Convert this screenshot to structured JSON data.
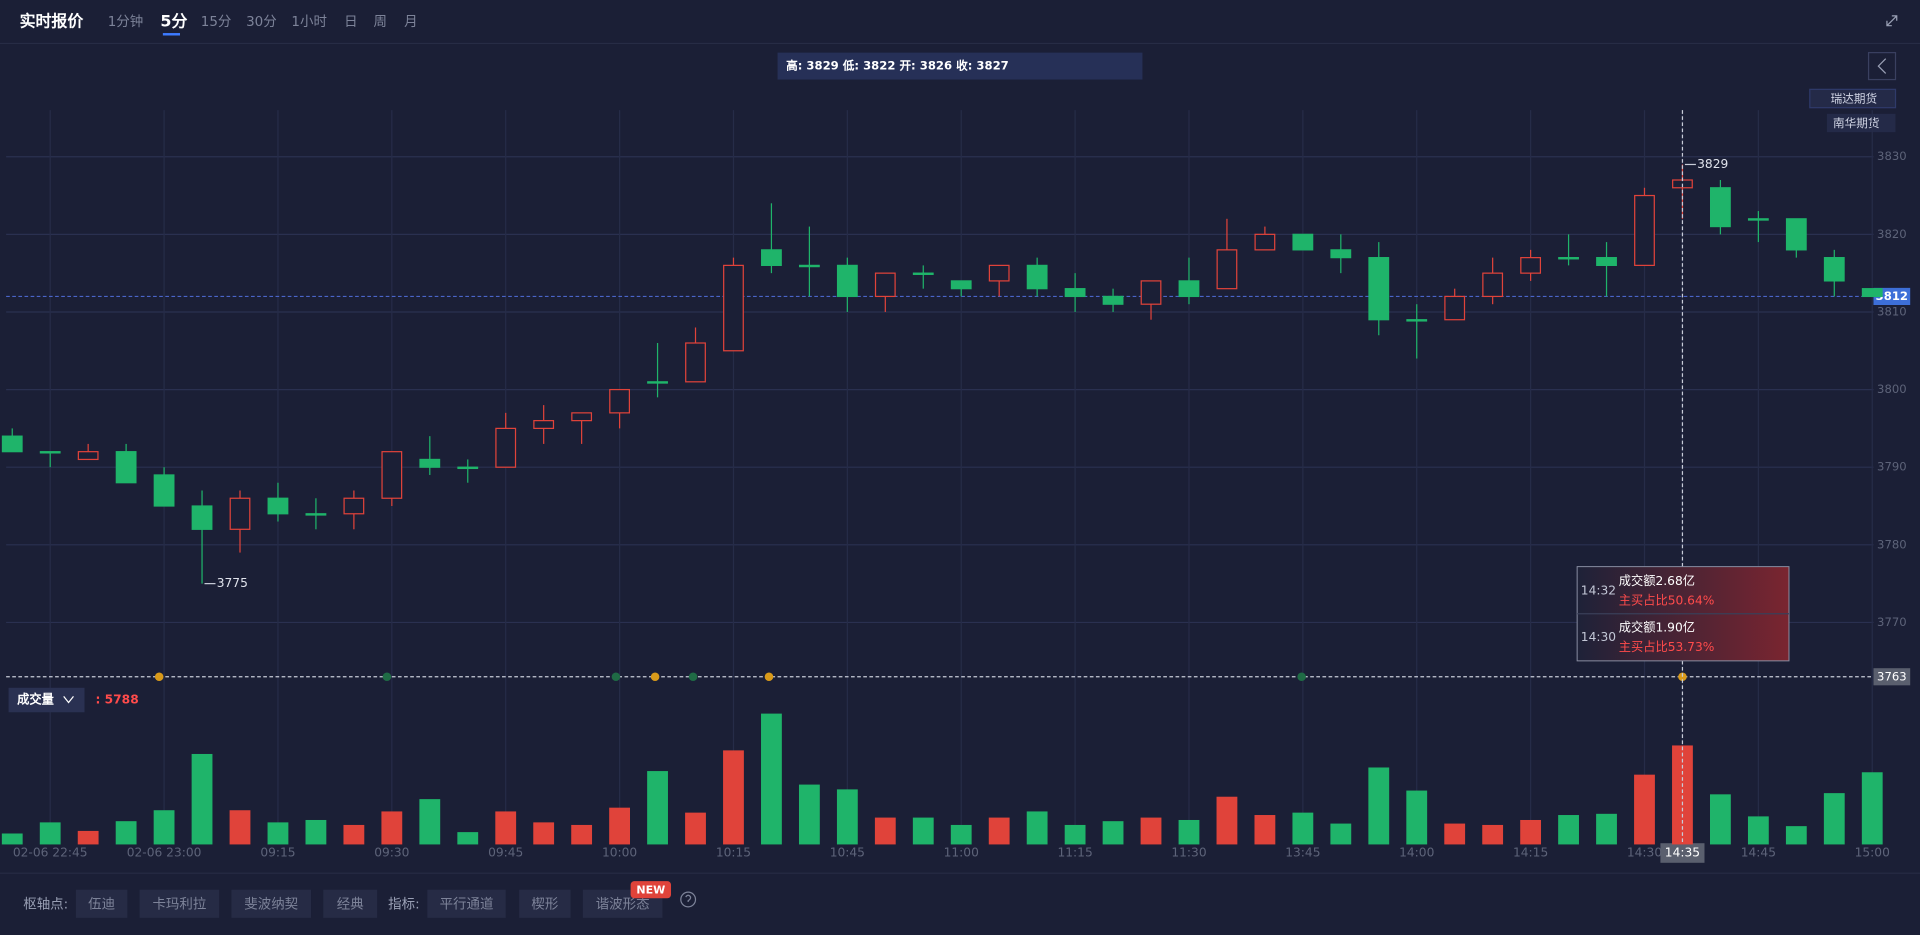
{
  "header": {
    "title": "实时报价",
    "periods": [
      "1分钟",
      "5分",
      "15分",
      "30分",
      "1小时",
      "日",
      "周",
      "月"
    ],
    "active_period": 1
  },
  "info": "高: 3829 低: 3822 开: 3826 收: 3827",
  "brokers": [
    "瑞达期货",
    "南华期货"
  ],
  "chart_data": {
    "type": "candlestick",
    "up_color": "#e0433a",
    "down_color": "#1fb46a",
    "categories": [
      null,
      "02-06 22:45",
      null,
      null,
      "02-06 23:00",
      null,
      null,
      "09:15",
      null,
      null,
      "09:30",
      null,
      null,
      "09:45",
      null,
      null,
      "10:00",
      null,
      null,
      "10:15",
      null,
      null,
      "10:45",
      null,
      null,
      "11:00",
      null,
      null,
      "11:15",
      null,
      null,
      "11:30",
      null,
      null,
      "13:45",
      null,
      null,
      "14:00",
      null,
      null,
      "14:15",
      null,
      null,
      "14:30",
      "14:35",
      null,
      "14:45",
      null,
      null,
      "15:00"
    ],
    "open": [
      3794,
      3792,
      3791,
      3792,
      3789,
      3785,
      3782,
      3786,
      3784,
      3784,
      3786,
      3791,
      3790,
      3790,
      3795,
      3796,
      3797,
      3801,
      3801,
      3805,
      3818,
      3816,
      3816,
      3812,
      3815,
      3814,
      3814,
      3816,
      3813,
      3812,
      3811,
      3814,
      3813,
      3818,
      3820,
      3818,
      3817,
      3809,
      3809,
      3812,
      3815,
      3817,
      3817,
      3816,
      3826,
      3826,
      3822,
      3822,
      3817,
      3813
    ],
    "high": [
      3795,
      3792,
      3793,
      3793,
      3790,
      3787,
      3787,
      3788,
      3786,
      3787,
      3792,
      3794,
      3791,
      3797,
      3798,
      3797,
      3800,
      3806,
      3808,
      3817,
      3824,
      3821,
      3817,
      3815,
      3816,
      3814,
      3816,
      3817,
      3815,
      3813,
      3814,
      3817,
      3822,
      3821,
      3820,
      3820,
      3819,
      3811,
      3813,
      3817,
      3818,
      3820,
      3819,
      3826,
      3829,
      3827,
      3823,
      3822,
      3818,
      3813
    ],
    "low": [
      3792,
      3790,
      3791,
      3788,
      3785,
      3775,
      3779,
      3783,
      3782,
      3782,
      3785,
      3789,
      3788,
      3790,
      3793,
      3793,
      3795,
      3799,
      3801,
      3805,
      3815,
      3812,
      3810,
      3810,
      3813,
      3812,
      3812,
      3812,
      3810,
      3810,
      3809,
      3811,
      3813,
      3818,
      3818,
      3815,
      3807,
      3804,
      3809,
      3811,
      3814,
      3816,
      3812,
      3816,
      3822,
      3820,
      3819,
      3817,
      3812,
      3812
    ],
    "close": [
      3792,
      3792,
      3792,
      3788,
      3785,
      3782,
      3786,
      3784,
      3784,
      3786,
      3792,
      3790,
      3790,
      3795,
      3796,
      3797,
      3800,
      3801,
      3806,
      3816,
      3816,
      3816,
      3812,
      3815,
      3815,
      3813,
      3816,
      3813,
      3812,
      3811,
      3814,
      3812,
      3818,
      3820,
      3818,
      3817,
      3809,
      3809,
      3812,
      3815,
      3817,
      3817,
      3816,
      3825,
      3827,
      3821,
      3822,
      3818,
      3814,
      3812
    ],
    "volume": [
      640,
      1290,
      790,
      1360,
      2000,
      5290,
      2000,
      1290,
      1430,
      1140,
      1930,
      2650,
      720,
      1930,
      1290,
      1140,
      2150,
      4290,
      1860,
      5500,
      7650,
      3500,
      3220,
      1570,
      1570,
      1140,
      1570,
      1930,
      1140,
      1360,
      1570,
      1430,
      2790,
      1720,
      1860,
      1220,
      4500,
      3150,
      1220,
      1140,
      1430,
      1720,
      1790,
      4080,
      5788,
      2930,
      1640,
      1070,
      3000,
      4220
    ],
    "ylim": [
      3763,
      3836
    ],
    "yticks": [
      3770,
      3780,
      3790,
      3800,
      3810,
      3820,
      3830
    ],
    "volume_ylim": [
      0,
      7800
    ],
    "grid": true,
    "current_price": 3812,
    "crosshair_price": 3763,
    "crosshair_index": 44,
    "high_mark": 3829,
    "low_mark": 3775,
    "volume_label": "成交量",
    "volume_readout": ": 5788"
  },
  "tooltip": [
    {
      "time": "14:32",
      "amount": "成交额2.68亿",
      "ratio": "主买占比50.64%"
    },
    {
      "time": "14:30",
      "amount": "成交额1.90亿",
      "ratio": "主买占比53.73%"
    }
  ],
  "footer": {
    "pivot_label": "枢轴点:",
    "pivots": [
      "伍迪",
      "卡玛利拉",
      "斐波纳契",
      "经典"
    ],
    "indicator_label": "指标:",
    "indicators": [
      "平行通道",
      "楔形",
      "谐波形态"
    ],
    "badge": "NEW"
  }
}
